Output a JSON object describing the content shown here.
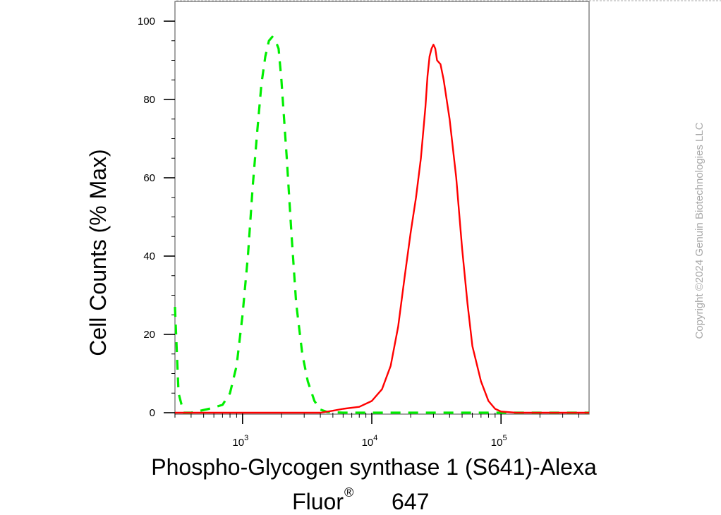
{
  "chart_data": {
    "type": "line",
    "xscale": "log",
    "xlim": [
      300,
      480000
    ],
    "ylim": [
      0,
      100
    ],
    "yticks": [
      0,
      20,
      40,
      60,
      80,
      100
    ],
    "ytick_labels": [
      "0",
      "20",
      "40",
      "60",
      "80",
      "100"
    ],
    "xtick_labels": [
      {
        "base": "10",
        "exp": "3"
      },
      {
        "base": "10",
        "exp": "4"
      },
      {
        "base": "10",
        "exp": "5"
      }
    ],
    "xtick_values": [
      1000,
      10000,
      100000
    ],
    "ylabel": "Cell Counts (% Max)",
    "xlabel_line1": "Phospho-Glycogen synthase 1 (S641)-Alexa",
    "xlabel_line2_prefix": "Fluor",
    "xlabel_line2_reg": "®",
    "xlabel_line2_suffix": "647",
    "grid": false,
    "series": [
      {
        "color": "#00ee00",
        "style": "dashed",
        "points": [
          [
            300,
            27
          ],
          [
            320,
            5
          ],
          [
            350,
            0
          ],
          [
            400,
            0
          ],
          [
            550,
            1
          ],
          [
            700,
            2
          ],
          [
            800,
            5
          ],
          [
            900,
            12
          ],
          [
            1000,
            25
          ],
          [
            1100,
            40
          ],
          [
            1200,
            58
          ],
          [
            1300,
            72
          ],
          [
            1400,
            84
          ],
          [
            1500,
            91
          ],
          [
            1600,
            95
          ],
          [
            1700,
            96
          ],
          [
            1800,
            95
          ],
          [
            1900,
            93
          ],
          [
            2000,
            85
          ],
          [
            2200,
            65
          ],
          [
            2400,
            45
          ],
          [
            2600,
            28
          ],
          [
            2900,
            15
          ],
          [
            3200,
            8
          ],
          [
            3600,
            3
          ],
          [
            4000,
            0.8
          ],
          [
            4500,
            0.2
          ],
          [
            6000,
            0
          ],
          [
            20000,
            0
          ],
          [
            100000,
            0
          ],
          [
            480000,
            0
          ]
        ]
      },
      {
        "color": "#ff0000",
        "style": "solid",
        "points": [
          [
            300,
            0
          ],
          [
            4000,
            0
          ],
          [
            5000,
            0.5
          ],
          [
            6000,
            1
          ],
          [
            8000,
            1.5
          ],
          [
            10000,
            3
          ],
          [
            12000,
            6
          ],
          [
            14000,
            12
          ],
          [
            16000,
            22
          ],
          [
            18000,
            35
          ],
          [
            20000,
            46
          ],
          [
            22000,
            55
          ],
          [
            24000,
            65
          ],
          [
            26000,
            78
          ],
          [
            27000,
            86
          ],
          [
            28000,
            91
          ],
          [
            29000,
            93
          ],
          [
            30000,
            94
          ],
          [
            31000,
            93
          ],
          [
            32000,
            90
          ],
          [
            34000,
            89
          ],
          [
            36000,
            85
          ],
          [
            40000,
            75
          ],
          [
            45000,
            60
          ],
          [
            50000,
            42
          ],
          [
            55000,
            28
          ],
          [
            60000,
            17
          ],
          [
            70000,
            8
          ],
          [
            80000,
            3
          ],
          [
            90000,
            1
          ],
          [
            100000,
            0.3
          ],
          [
            130000,
            0
          ],
          [
            480000,
            0
          ]
        ]
      }
    ]
  },
  "copyright": "Copyright ©2024 Genuin Biotechnologies LLC"
}
